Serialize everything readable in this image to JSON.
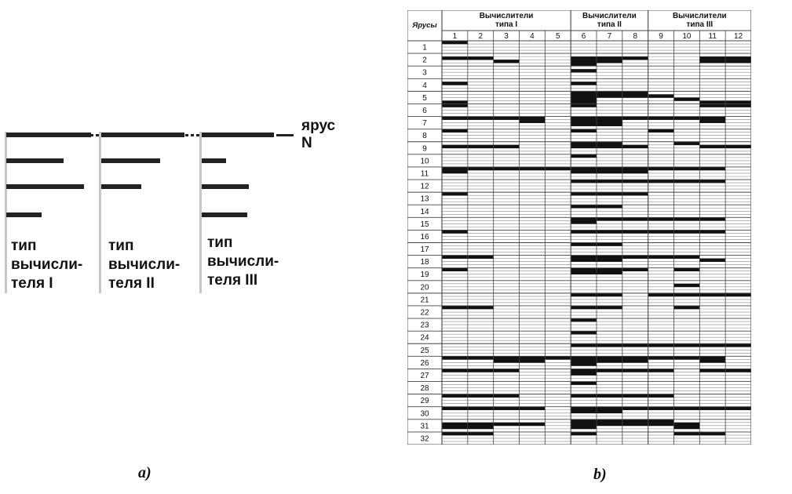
{
  "panel_a": {
    "label": "a)",
    "tier_label": "ярус\nN",
    "types": [
      {
        "label": "тип\nвычисли-\nтеля I",
        "bars": [
          1.0,
          0.68,
          0.92,
          0.42
        ]
      },
      {
        "label": "тип\nвычисли-\nтеля II",
        "bars": [
          0.96,
          0.68,
          0.46,
          0.0
        ]
      },
      {
        "label": "тип\nвычисли-\nтеля III",
        "bars": [
          0.96,
          0.32,
          0.62,
          0.6
        ]
      }
    ]
  },
  "panel_b": {
    "label": "b)",
    "row_header": "Ярусы",
    "groups": [
      {
        "label": "Вычислители\nтипа I",
        "columns": [
          "1",
          "2",
          "3",
          "4",
          "5"
        ]
      },
      {
        "label": "Вычислители\nтипа II",
        "columns": [
          "6",
          "7",
          "8"
        ]
      },
      {
        "label": "Вычислители\nтипа III",
        "columns": [
          "9",
          "10",
          "11",
          "12"
        ]
      }
    ],
    "rows": [
      "1",
      "2",
      "3",
      "4",
      "5",
      "6",
      "7",
      "8",
      "9",
      "10",
      "11",
      "12",
      "13",
      "14",
      "15",
      "16",
      "17",
      "18",
      "19",
      "20",
      "21",
      "22",
      "23",
      "24",
      "25",
      "26",
      "27",
      "28",
      "29",
      "30",
      "31",
      "32"
    ],
    "occupancy": [
      "100000000000",
      "110011110011",
      "000000000000",
      "000001000000",
      "000001110000",
      "000001101000",
      "111101111110",
      "100001101100",
      "111001111011",
      "000001000100",
      "111111111110",
      "000001111110",
      "100001110000",
      "000001100000",
      "000001111110",
      "100001111110",
      "000001100000",
      "110001111100",
      "100001110100",
      "000001000100",
      "000001101111",
      "110001100100",
      "000001000000",
      "000001000000",
      "000001111111",
      "111111111110",
      "111001111011",
      "000001000000",
      "111001111000",
      "111101111111",
      "111101111100",
      "110001000110"
    ],
    "occupancy_fine": [
      [
        "100000000000",
        "000000000000",
        "000000000000",
        "000000000000"
      ],
      [
        "000000000000",
        "110001110011",
        "001001100011",
        "000001000000"
      ],
      [
        "000000000000",
        "000001000000",
        "000000000000",
        "000000000000"
      ],
      [
        "000000000000",
        "100001000000",
        "000000000000",
        "000000000000"
      ],
      [
        "000001110000",
        "000001111000",
        "000001000100",
        "100001000011"
      ],
      [
        "100001000011",
        "000000000000",
        "000000000000",
        "000000000000"
      ],
      [
        "111101111110",
        "000101100010",
        "000001100000",
        "000000000000"
      ],
      [
        "100001001000",
        "000000000000",
        "000000000000",
        "000000000000"
      ],
      [
        "000001100100",
        "111001110011",
        "000000000000",
        "000000000000"
      ],
      [
        "000001000000",
        "000000000000",
        "000000000000",
        "000000000000"
      ],
      [
        "111111111110",
        "100001110000",
        "000000000000",
        "000000000000"
      ],
      [
        "000001111110",
        "000000000000",
        "000000000000",
        "000000000000"
      ],
      [
        "100001110000",
        "000000000000",
        "000000000000",
        "000000000000"
      ],
      [
        "000001100000",
        "000000000000",
        "000000000000",
        "000000000000"
      ],
      [
        "000001111110",
        "000001000000",
        "000000000000",
        "000000000000"
      ],
      [
        "100001111110",
        "000000000000",
        "000000000000",
        "000000000000"
      ],
      [
        "000001100000",
        "000000000000",
        "000000000000",
        "000000000000"
      ],
      [
        "110001111100",
        "000001100010",
        "000000000000",
        "000000000000"
      ],
      [
        "100001110100",
        "000001100000",
        "000000000000",
        "000000000000"
      ],
      [
        "000000000000",
        "000000000100",
        "000000000000",
        "000000000000"
      ],
      [
        "000001101111",
        "000000000000",
        "000000000000",
        "000000000000"
      ],
      [
        "110001100100",
        "000000000000",
        "000000000000",
        "000000000000"
      ],
      [
        "000001000000",
        "000000000000",
        "000000000000",
        "000000000000"
      ],
      [
        "000001000000",
        "000000000000",
        "000000000000",
        "000000000000"
      ],
      [
        "000001111111",
        "000000000000",
        "000000000000",
        "000000000000"
      ],
      [
        "111111111110",
        "001101110010",
        "000001000000",
        "000000000000"
      ],
      [
        "111001111011",
        "000001000000",
        "000000000000",
        "000000000000"
      ],
      [
        "000001000000",
        "000000000000",
        "000000000000",
        "000000000000"
      ],
      [
        "111001111000",
        "000000000000",
        "000000000000",
        "000000000000"
      ],
      [
        "111101111111",
        "000001100000",
        "000000000000",
        "000000000000"
      ],
      [
        "000001111000",
        "111101111100",
        "110001000100",
        "000000000000"
      ],
      [
        "110001000110",
        "000000000000",
        "000000000000",
        "000000000000"
      ]
    ]
  }
}
